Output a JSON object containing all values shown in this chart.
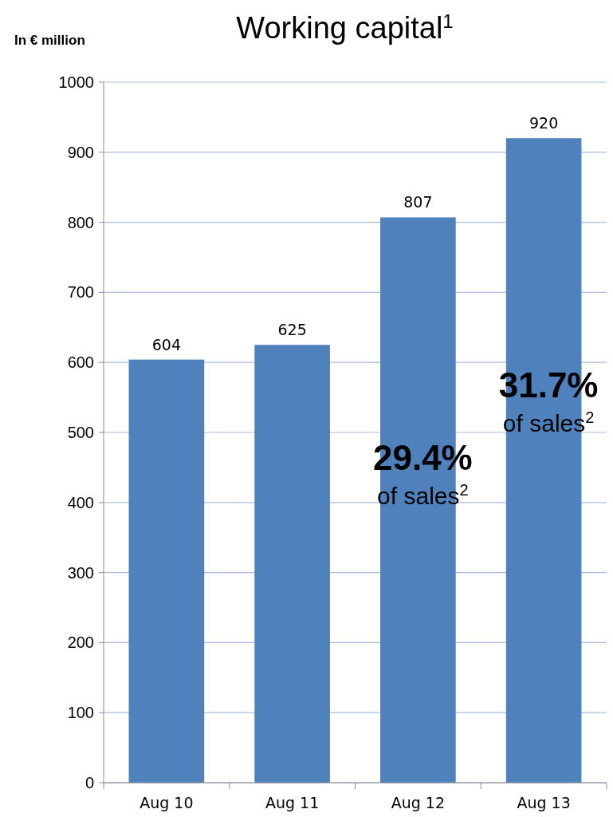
{
  "chart_data": {
    "type": "bar",
    "title": "Working capital$^{1}$",
    "ylabel": "In € million",
    "categories": [
      "Aug 10",
      "Aug 11",
      "Aug 12",
      "Aug 13"
    ],
    "values": [
      604,
      625,
      807,
      920
    ],
    "color": "#4f81bd",
    "ylim": [
      0,
      1000
    ],
    "yticks": [
      0,
      100,
      200,
      300,
      400,
      500,
      600,
      700,
      800,
      900,
      1000
    ],
    "grid": "y",
    "data_labels": true,
    "annotations": [
      "29.4%",
      "of sales$^{2}$",
      "31.7%",
      "of sales$^{2}$"
    ]
  }
}
